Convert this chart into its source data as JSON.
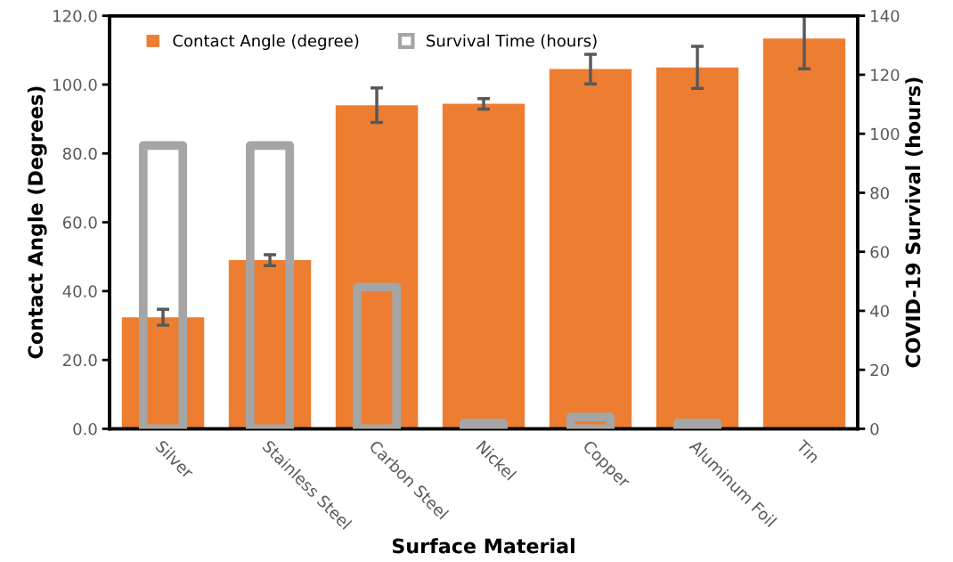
{
  "chart_data": {
    "type": "bar",
    "xlabel": "Surface Material",
    "ylabel": "Contact Angle (Degrees)",
    "y2label": "COVID-19 Survival (hours)",
    "categories": [
      "Silver",
      "Stainless Steel",
      "Carbon Steel",
      "Nickel",
      "Copper",
      "Aluminum Foil",
      "Tin"
    ],
    "series": [
      {
        "name": "Contact Angle (degree)",
        "color": "#ed7d31",
        "values": [
          32.4,
          49.0,
          94.0,
          94.4,
          104.5,
          105.0,
          113.4
        ],
        "errors": [
          2.3,
          1.6,
          5.0,
          1.5,
          4.3,
          6.1,
          8.8
        ]
      },
      {
        "name": "Survival Time (hours)",
        "color": "#a5a5a5",
        "axis": "y2",
        "values": [
          96,
          96,
          48,
          2,
          4,
          2,
          null
        ]
      }
    ],
    "ylim": [
      0,
      120
    ],
    "yticks": [
      {
        "value": 0,
        "label": "0.0"
      },
      {
        "value": 20,
        "label": "20.0"
      },
      {
        "value": 40,
        "label": "40.0"
      },
      {
        "value": 60,
        "label": "60.0"
      },
      {
        "value": 80,
        "label": "80.0"
      },
      {
        "value": 100,
        "label": "100.0"
      },
      {
        "value": 120,
        "label": "120.0"
      }
    ],
    "y2lim": [
      0,
      140
    ],
    "y2ticks": [
      0,
      20,
      40,
      60,
      80,
      100,
      120,
      140
    ],
    "legend": "top left",
    "grid": false
  }
}
